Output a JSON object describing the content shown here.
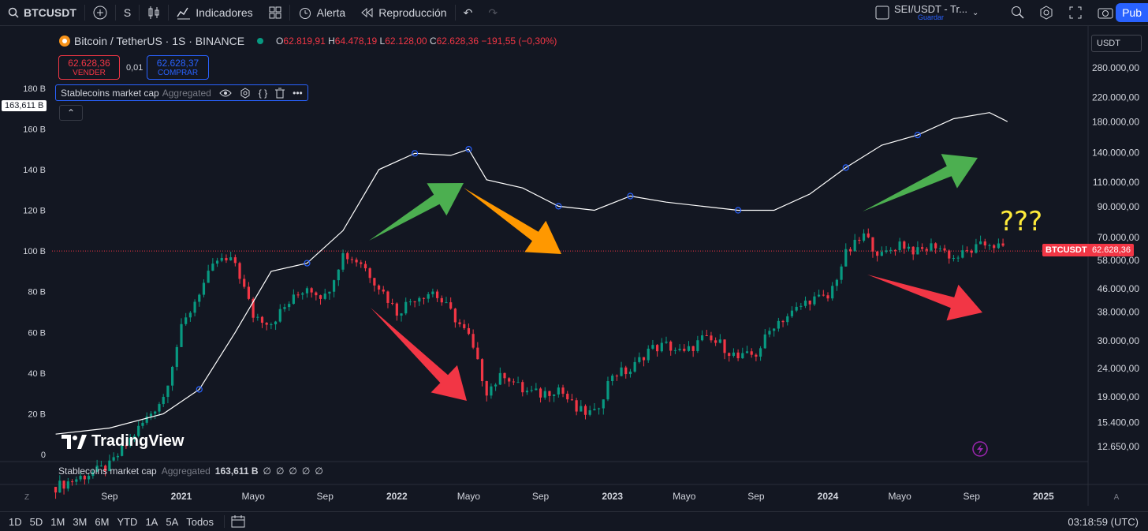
{
  "toolbar": {
    "symbol": "BTCUSDT",
    "interval": "S",
    "indicators_label": "Indicadores",
    "alert_label": "Alerta",
    "replay_label": "Reproducción",
    "layout_name": "SEI/USDT - Tr...",
    "layout_save": "Guardar",
    "publish_label": "Pub"
  },
  "legend": {
    "title": "Bitcoin / TetherUS · 1S · BINANCE",
    "o_label": "O",
    "o": "62.819,91",
    "h_label": "H",
    "h": "64.478,19",
    "l_label": "L",
    "l": "62.128,00",
    "c_label": "C",
    "c": "62.628,36",
    "change": "−191,55 (−0,30%)",
    "sell_price": "62.628,36",
    "sell_label": "VENDER",
    "spread": "0,01",
    "buy_price": "62.628,37",
    "buy_label": "COMPRAR",
    "indicator_name": "Stablecoins market cap",
    "indicator_source": "Aggregated",
    "left_flag": "163,611 B"
  },
  "currency_select": "USDT",
  "pane2": {
    "name": "Stablecoins market cap",
    "source": "Aggregated",
    "value": "163,611 B",
    "extras": [
      "∅",
      "∅",
      "∅",
      "∅",
      "∅"
    ]
  },
  "price_tag_symbol": "BTCUSDT",
  "price_tag_value": "62.628,36",
  "annotation_text": "???",
  "logo_text": "TradingView",
  "colors": {
    "up": "#089981",
    "down": "#f23645",
    "accent": "#2962ff",
    "green_arrow": "#4caf50",
    "orange_arrow": "#ff9800",
    "red_arrow": "#f23645",
    "question": "#ffeb3b"
  },
  "bottom": {
    "timeframes": [
      "1D",
      "5D",
      "1M",
      "3M",
      "6M",
      "YTD",
      "1A",
      "5A",
      "Todos"
    ],
    "clock": "03:18:59 (UTC)"
  },
  "chart_data": {
    "type": "line",
    "title": "Bitcoin / TetherUS · 1S · BINANCE",
    "left_axis": {
      "ticks": [
        "180 B",
        "160 B",
        "140 B",
        "120 B",
        "100 B",
        "80 B",
        "60 B",
        "40 B",
        "20 B",
        "0"
      ],
      "ylim": [
        0,
        190
      ]
    },
    "right_axis": {
      "scale": "log",
      "ticks": [
        "280.000,00",
        "220.000,00",
        "180.000,00",
        "140.000,00",
        "110.000,00",
        "90.000,00",
        "70.000,00",
        "58.000,00",
        "46.000,00",
        "38.000,00",
        "30.000,00",
        "24.000,00",
        "19.000,00",
        "15.400,00",
        "12.650,00"
      ]
    },
    "x_ticks": [
      "Sep",
      "2021",
      "Mayo",
      "Sep",
      "2022",
      "Mayo",
      "Sep",
      "2023",
      "Mayo",
      "Sep",
      "2024",
      "Mayo",
      "Sep",
      "2025"
    ],
    "x_range": [
      "2020-06",
      "2025-03"
    ],
    "price_line": 62628.36,
    "series": [
      {
        "name": "Stablecoins market cap",
        "x": [
          "2020-06",
          "2020-09",
          "2020-12",
          "2021-02",
          "2021-04",
          "2021-06",
          "2021-08",
          "2021-10",
          "2021-12",
          "2022-02",
          "2022-04",
          "2022-05",
          "2022-06",
          "2022-08",
          "2022-10",
          "2022-12",
          "2023-02",
          "2023-04",
          "2023-06",
          "2023-08",
          "2023-10",
          "2023-12",
          "2024-02",
          "2024-04",
          "2024-06",
          "2024-08",
          "2024-10",
          "2024-11"
        ],
        "values": [
          10,
          13,
          20,
          32,
          60,
          90,
          94,
          110,
          140,
          148,
          147,
          150,
          135,
          131,
          122,
          120,
          127,
          124,
          122,
          120,
          120,
          128,
          141,
          152,
          157,
          165,
          168,
          163.6
        ]
      },
      {
        "name": "BTCUSDT",
        "x": [
          "2020-06",
          "2020-09",
          "2020-12",
          "2021-01",
          "2021-02",
          "2021-03",
          "2021-04",
          "2021-05",
          "2021-06",
          "2021-07",
          "2021-08",
          "2021-09",
          "2021-10",
          "2021-11",
          "2021-12",
          "2022-01",
          "2022-02",
          "2022-03",
          "2022-04",
          "2022-05",
          "2022-06",
          "2022-07",
          "2022-08",
          "2022-09",
          "2022-10",
          "2022-11",
          "2022-12",
          "2023-01",
          "2023-02",
          "2023-03",
          "2023-04",
          "2023-05",
          "2023-06",
          "2023-07",
          "2023-08",
          "2023-09",
          "2023-10",
          "2023-11",
          "2023-12",
          "2024-01",
          "2024-02",
          "2024-03",
          "2024-04",
          "2024-05",
          "2024-06",
          "2024-07",
          "2024-08",
          "2024-09",
          "2024-10",
          "2024-11"
        ],
        "values": [
          9100,
          10800,
          19000,
          33000,
          45000,
          58000,
          57000,
          37000,
          35000,
          41000,
          47000,
          43000,
          61000,
          57000,
          47000,
          38000,
          43000,
          45000,
          38000,
          31000,
          20000,
          23000,
          20000,
          19400,
          20500,
          17000,
          16500,
          23000,
          23500,
          28000,
          29000,
          27000,
          30500,
          29300,
          26000,
          27000,
          34500,
          37700,
          42300,
          42500,
          61000,
          71000,
          60000,
          67000,
          62000,
          66000,
          59000,
          63000,
          67000,
          62628
        ]
      }
    ],
    "annotations": [
      "green arrow up",
      "orange arrow down",
      "red arrow down",
      "green arrow up",
      "red arrow down",
      "???"
    ]
  }
}
